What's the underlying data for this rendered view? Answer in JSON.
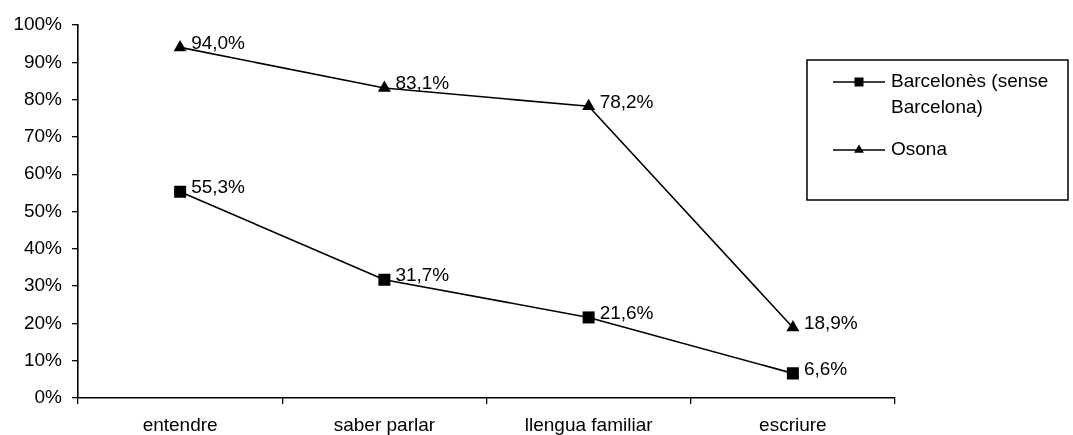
{
  "chart_data": {
    "type": "line",
    "categories": [
      "entendre",
      "saber parlar",
      "llengua familiar",
      "escriure"
    ],
    "series": [
      {
        "name": "Barcelonès (sense Barcelona)",
        "color": "#000000",
        "marker": "square",
        "values": [
          55.3,
          31.7,
          21.6,
          6.6
        ],
        "value_labels": [
          "55,3%",
          "31,7%",
          "21,6%",
          "6,6%"
        ]
      },
      {
        "name": "Osona",
        "color": "#000000",
        "marker": "triangle",
        "values": [
          94.0,
          83.1,
          78.2,
          18.9
        ],
        "value_labels": [
          "94,0%",
          "83,1%",
          "78,2%",
          "18,9%"
        ]
      }
    ],
    "ylim": [
      0,
      100
    ],
    "yticks": [
      {
        "value": 0,
        "label": "0%"
      },
      {
        "value": 10,
        "label": "10%"
      },
      {
        "value": 20,
        "label": "20%"
      },
      {
        "value": 30,
        "label": "30%"
      },
      {
        "value": 40,
        "label": "40%"
      },
      {
        "value": 50,
        "label": "50%"
      },
      {
        "value": 60,
        "label": "60%"
      },
      {
        "value": 70,
        "label": "70%"
      },
      {
        "value": 80,
        "label": "80%"
      },
      {
        "value": 90,
        "label": "90%"
      },
      {
        "value": 100,
        "label": "100%"
      }
    ],
    "grid": false,
    "legend": "top right",
    "line_style": "solid"
  }
}
